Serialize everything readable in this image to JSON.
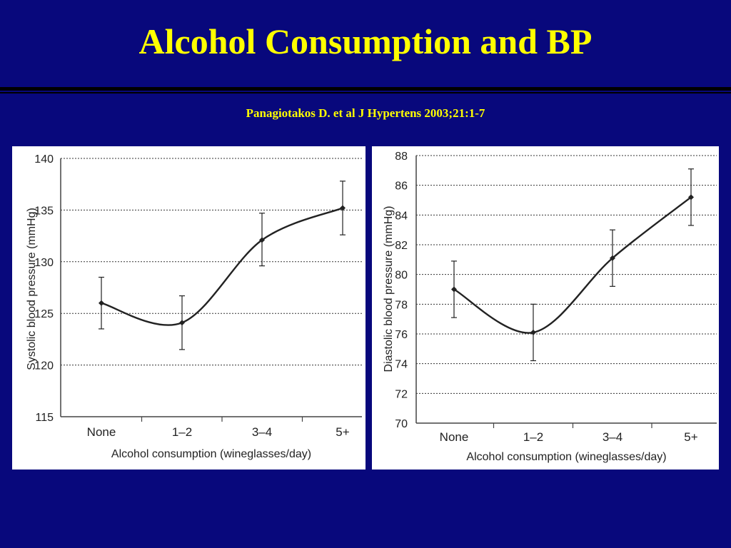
{
  "slide": {
    "title": "Alcohol Consumption and BP",
    "citation": "Panagiotakos D. et al J Hypertens 2003;21:1-7"
  },
  "colors": {
    "background": "#08087c",
    "title": "#ffff00",
    "panel": "#ffffff",
    "line": "#222222"
  },
  "chart_data": [
    {
      "type": "line",
      "title": "",
      "xlabel": "Alcohol consumption (wineglasses/day)",
      "ylabel": "Systolic blood pressure (mmHg)",
      "categories": [
        "None",
        "1–2",
        "3–4",
        "5+"
      ],
      "values": [
        126,
        124.1,
        132.1,
        135.2
      ],
      "error_low": [
        123.5,
        121.5,
        129.6,
        132.6
      ],
      "error_high": [
        128.5,
        126.7,
        134.7,
        137.8
      ],
      "ylim": [
        115,
        140
      ],
      "yticks": [
        "115",
        "120",
        "125",
        "130",
        "135",
        "140"
      ],
      "grid": true,
      "smooth": true
    },
    {
      "type": "line",
      "title": "",
      "xlabel": "Alcohol consumption (wineglasses/day)",
      "ylabel": "Diastolic blood pressure (mmHg)",
      "categories": [
        "None",
        "1–2",
        "3–4",
        "5+"
      ],
      "values": [
        79,
        76.1,
        81.1,
        85.2
      ],
      "error_low": [
        77.1,
        74.2,
        79.2,
        83.3
      ],
      "error_high": [
        80.9,
        78,
        83,
        87.1
      ],
      "ylim": [
        70,
        88
      ],
      "yticks": [
        "70",
        "72",
        "74",
        "76",
        "78",
        "80",
        "82",
        "84",
        "86",
        "88"
      ],
      "grid": true,
      "smooth": true
    }
  ]
}
